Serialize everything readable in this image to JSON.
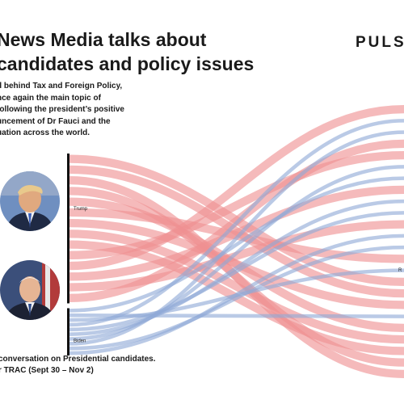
{
  "header": {
    "title_lines": [
      "News Media talks about",
      "candidates and policy issues"
    ],
    "brand": "PULSA"
  },
  "intro": {
    "lines": [
      "d behind Tax and Foreign Policy,",
      "nce again the main topic of",
      " following the president’s positive",
      "uncement of Dr Fauci and the",
      "uation across the world."
    ]
  },
  "footnote": {
    "lines": [
      "conversation on Presidential candidates.",
      "r TRAC (Sept 30 – Nov 2)"
    ]
  },
  "colors": {
    "trump": "#ef8f92",
    "biden": "#8fa9d6",
    "node": "#111111"
  },
  "chart_data": {
    "type": "sankey",
    "sources": [
      {
        "name": "Trump",
        "share": 0.76
      },
      {
        "name": "Biden",
        "share": 0.24
      }
    ],
    "targets_visible": [
      "R"
    ],
    "flows": [
      {
        "source": "Trump",
        "count": 14
      },
      {
        "source": "Biden",
        "count": 10
      }
    ]
  }
}
